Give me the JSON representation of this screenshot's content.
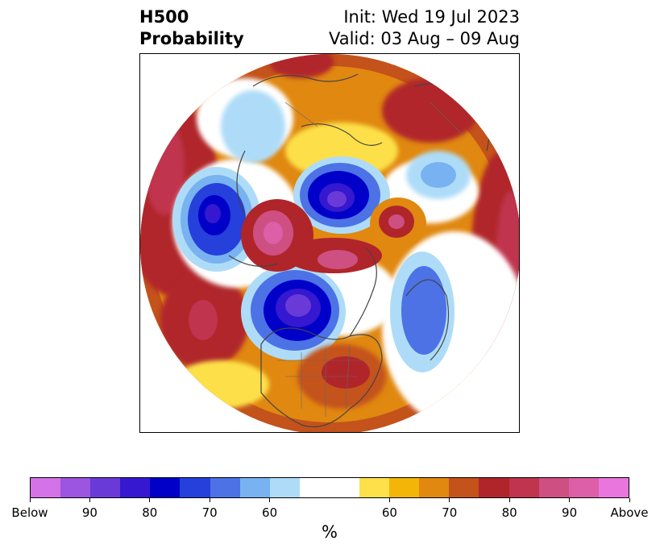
{
  "title": {
    "left_line1": "H500",
    "left_line2": "Probability",
    "init": "Init: Wed 19 Jul 2023",
    "valid": "Valid: 03 Aug – 09 Aug"
  },
  "colorbar": {
    "unit": "%",
    "colors": [
      "#d473e8",
      "#9b55e0",
      "#6a3ad8",
      "#3518cf",
      "#0000c8",
      "#2540db",
      "#4c72e6",
      "#78b2f0",
      "#aedcf8",
      "#ffffff",
      "#ffffff",
      "#fde04a",
      "#f3b508",
      "#e08810",
      "#c4521b",
      "#b0252a",
      "#c0344e",
      "#ce4f82",
      "#dc5fa8",
      "#e876dd"
    ],
    "tick_labels": [
      "Below",
      "90",
      "80",
      "70",
      "60",
      "60",
      "70",
      "80",
      "90",
      "Above"
    ]
  },
  "map": {
    "background": "#ffffff",
    "coastline_color": "#444444"
  }
}
